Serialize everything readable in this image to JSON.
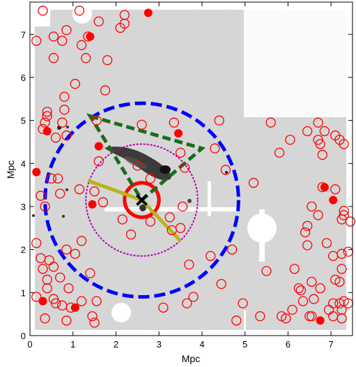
{
  "chart_data": {
    "type": "scatter",
    "xlabel": "Mpc",
    "ylabel": "Mpc",
    "xlim": [
      0,
      7.5
    ],
    "ylim": [
      0,
      7.75
    ],
    "xticks": [
      0,
      1,
      2,
      3,
      4,
      5,
      6,
      7
    ],
    "yticks": [
      0,
      1,
      2,
      3,
      4,
      5,
      6,
      7
    ],
    "background": "grayscale radio/optical image with white masked regions",
    "center": [
      2.6,
      3.15
    ],
    "center_marker": "black-x",
    "series": [
      {
        "marker": "open-red-circle",
        "color": "#ff0000",
        "points": [
          [
            0.3,
            7.55
          ],
          [
            0.15,
            6.85
          ],
          [
            0.55,
            6.95
          ],
          [
            0.85,
            7.1
          ],
          [
            1.15,
            7.55
          ],
          [
            0.75,
            6.85
          ],
          [
            1.35,
            6.95
          ],
          [
            1.2,
            6.75
          ],
          [
            1.6,
            7.3
          ],
          [
            2.2,
            7.45
          ],
          [
            2.2,
            7.25
          ],
          [
            2.1,
            7.15
          ],
          [
            0.55,
            6.45
          ],
          [
            1.3,
            6.45
          ],
          [
            1.8,
            6.4
          ],
          [
            1.05,
            5.85
          ],
          [
            1.75,
            5.7
          ],
          [
            0.8,
            5.55
          ],
          [
            0.8,
            5.25
          ],
          [
            0.4,
            5.2
          ],
          [
            0.4,
            5.1
          ],
          [
            0.35,
            4.95
          ],
          [
            0.75,
            4.95
          ],
          [
            0.3,
            4.8
          ],
          [
            0.6,
            4.6
          ],
          [
            0.85,
            4.65
          ],
          [
            1.55,
            5.0
          ],
          [
            2.6,
            4.9
          ],
          [
            3.35,
            4.95
          ],
          [
            4.4,
            5.0
          ],
          [
            5.6,
            4.95
          ],
          [
            6.45,
            4.75
          ],
          [
            6.7,
            4.95
          ],
          [
            6.85,
            4.75
          ],
          [
            7.1,
            4.65
          ],
          [
            7.2,
            4.55
          ],
          [
            7.3,
            4.45
          ],
          [
            6.7,
            4.55
          ],
          [
            6.75,
            4.45
          ],
          [
            6.8,
            4.2
          ],
          [
            4.3,
            4.35
          ],
          [
            3.5,
            4.25
          ],
          [
            2.5,
            3.95
          ],
          [
            2.8,
            3.65
          ],
          [
            1.6,
            4.05
          ],
          [
            0.5,
            3.65
          ],
          [
            0.25,
            3.25
          ],
          [
            0.35,
            3.0
          ],
          [
            0.7,
            3.3
          ],
          [
            0.65,
            3.65
          ],
          [
            1.15,
            3.4
          ],
          [
            1.5,
            3.35
          ],
          [
            1.7,
            3.1
          ],
          [
            3.6,
            3.9
          ],
          [
            4.55,
            3.85
          ],
          [
            5.2,
            3.55
          ],
          [
            6.8,
            3.45
          ],
          [
            7.1,
            3.4
          ],
          [
            6.55,
            3.0
          ],
          [
            6.7,
            2.8
          ],
          [
            6.45,
            2.55
          ],
          [
            7.3,
            2.9
          ],
          [
            7.25,
            2.7
          ],
          [
            7.3,
            2.8
          ],
          [
            3.3,
            2.45
          ],
          [
            2.35,
            2.35
          ],
          [
            1.2,
            2.2
          ],
          [
            0.15,
            2.15
          ],
          [
            0.85,
            2.0
          ],
          [
            1.05,
            1.9
          ],
          [
            0.25,
            1.8
          ],
          [
            0.45,
            1.75
          ],
          [
            0.55,
            1.6
          ],
          [
            0.3,
            1.55
          ],
          [
            0.7,
            1.35
          ],
          [
            1.4,
            1.45
          ],
          [
            0.4,
            1.3
          ],
          [
            0.9,
            1.1
          ],
          [
            0.4,
            1.1
          ],
          [
            0.15,
            0.9
          ],
          [
            0.55,
            0.85
          ],
          [
            0.6,
            0.75
          ],
          [
            0.75,
            0.7
          ],
          [
            0.95,
            0.65
          ],
          [
            1.2,
            0.8
          ],
          [
            1.55,
            0.8
          ],
          [
            0.35,
            0.4
          ],
          [
            0.85,
            0.35
          ],
          [
            1.45,
            0.45
          ],
          [
            1.5,
            0.3
          ],
          [
            3.1,
            0.65
          ],
          [
            3.65,
            0.75
          ],
          [
            3.8,
            0.9
          ],
          [
            4.95,
            0.75
          ],
          [
            5.35,
            0.45
          ],
          [
            5.85,
            0.45
          ],
          [
            5.95,
            0.4
          ],
          [
            6.1,
            0.6
          ],
          [
            6.25,
            1.1
          ],
          [
            6.35,
            0.8
          ],
          [
            6.5,
            0.45
          ],
          [
            6.55,
            1.25
          ],
          [
            6.6,
            0.85
          ],
          [
            6.75,
            1.1
          ],
          [
            7.1,
            1.3
          ],
          [
            7.2,
            1.25
          ],
          [
            7.25,
            1.55
          ],
          [
            7.05,
            1.85
          ],
          [
            7.25,
            1.9
          ],
          [
            7.4,
            1.95
          ],
          [
            6.9,
            2.15
          ],
          [
            6.45,
            2.1
          ],
          [
            6.4,
            2.4
          ],
          [
            6.15,
            1.55
          ],
          [
            7.05,
            0.75
          ],
          [
            7.2,
            0.75
          ],
          [
            7.3,
            0.8
          ],
          [
            7.4,
            0.75
          ],
          [
            7.25,
            0.6
          ],
          [
            7.05,
            0.45
          ],
          [
            7.25,
            0.4
          ],
          [
            6.55,
            0.45
          ],
          [
            5.5,
            1.5
          ],
          [
            4.7,
            2.0
          ],
          [
            3.7,
            1.65
          ],
          [
            3.5,
            2.5
          ],
          [
            2.8,
            2.65
          ],
          [
            2.15,
            2.7
          ],
          [
            3.25,
            2.75
          ],
          [
            3.55,
            3.0
          ],
          [
            4.2,
            1.85
          ],
          [
            4.8,
            0.35
          ],
          [
            4.45,
            1.2
          ],
          [
            6.3,
            1.05
          ],
          [
            5.8,
            4.25
          ],
          [
            6.05,
            4.55
          ],
          [
            6.95,
            0.6
          ],
          [
            7.45,
            2.65
          ]
        ]
      },
      {
        "marker": "filled-red-circle",
        "color": "#ff0000",
        "points": [
          [
            2.75,
            7.5
          ],
          [
            1.4,
            6.95
          ],
          [
            0.4,
            4.75
          ],
          [
            1.6,
            4.4
          ],
          [
            3.45,
            4.7
          ],
          [
            0.15,
            3.8
          ],
          [
            1.45,
            3.05
          ],
          [
            6.85,
            3.45
          ],
          [
            7.05,
            3.15
          ],
          [
            0.3,
            0.8
          ],
          [
            1.05,
            0.65
          ],
          [
            6.75,
            0.35
          ]
        ]
      }
    ],
    "overlays": [
      {
        "shape": "circle",
        "style": "dashed",
        "color": "#0000ff",
        "center": [
          2.6,
          3.15
        ],
        "radius": 2.25
      },
      {
        "shape": "circle",
        "style": "dotted",
        "color": "#b000b0",
        "center": [
          2.6,
          3.15
        ],
        "radius": 1.3
      },
      {
        "shape": "circle",
        "style": "solid",
        "color": "#ff0000",
        "center": [
          2.6,
          3.15
        ],
        "radius": 0.4
      },
      {
        "shape": "triangle",
        "style": "dashed",
        "color": "#1a6b1a",
        "vertices": [
          [
            1.4,
            5.1
          ],
          [
            4.0,
            4.35
          ],
          [
            2.6,
            3.15
          ]
        ]
      },
      {
        "shape": "polyline",
        "style": "solid",
        "color": "#b5b51a",
        "points": [
          [
            1.35,
            3.6
          ],
          [
            2.6,
            3.15
          ],
          [
            3.5,
            2.2
          ]
        ]
      }
    ]
  }
}
